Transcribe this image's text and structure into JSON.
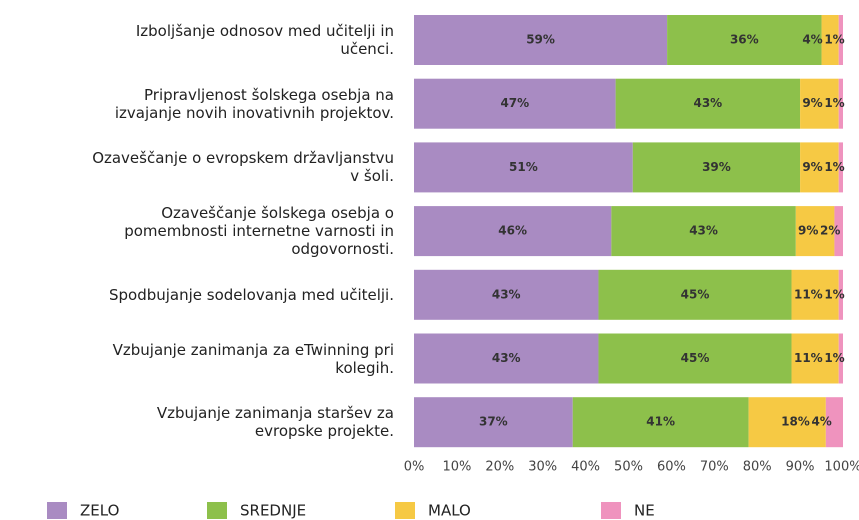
{
  "chart_data": {
    "type": "stacked_barh",
    "categories": [
      "Izboljšanje odnosov med učitelji in\nučenci.",
      "Pripravljenost šolskega osebja na\nizvajanje novih inovativnih projektov.",
      "Ozaveščanje o evropskem državljanstvu\nv šoli.",
      "Ozaveščanje šolskega osebja o\npomembnosti internetne varnosti in\nodgovornosti.",
      "Spodbujanje sodelovanja med učitelji.",
      "Vzbujanje zanimanja za eTwinning pri\nkolegih.",
      "Vzbujanje zanimanja staršev za\nevropske projekte."
    ],
    "series": [
      {
        "name": "ZELO",
        "color": "#a98bc2",
        "values": [
          59,
          47,
          51,
          46,
          43,
          43,
          37
        ],
        "value_labels": [
          "59%",
          "47%",
          "51%",
          "46%",
          "43%",
          "43%",
          "37%"
        ]
      },
      {
        "name": "SREDNJE",
        "color": "#8dc04b",
        "values": [
          36,
          43,
          39,
          43,
          45,
          45,
          41
        ],
        "value_labels": [
          "36%",
          "43%",
          "39%",
          "43%",
          "45%",
          "45%",
          "41%"
        ]
      },
      {
        "name": "MALO",
        "color": "#f6c944",
        "values": [
          4,
          9,
          9,
          9,
          11,
          11,
          18
        ],
        "value_labels": [
          "4%",
          "9%",
          "9%",
          "9%",
          "11%",
          "11%",
          "18%"
        ]
      },
      {
        "name": "NE",
        "color": "#ef93be",
        "values": [
          1,
          1,
          1,
          2,
          1,
          1,
          4
        ],
        "value_labels": [
          "1%",
          "1%",
          "1%",
          "2%",
          "1%",
          "1%",
          "4%"
        ]
      }
    ],
    "xlim": [
      0,
      100
    ],
    "xticks": [
      {
        "value": 0,
        "label": "0%"
      },
      {
        "value": 10,
        "label": "10%"
      },
      {
        "value": 20,
        "label": "20%"
      },
      {
        "value": 30,
        "label": "30%"
      },
      {
        "value": 40,
        "label": "40%"
      },
      {
        "value": 50,
        "label": "50%"
      },
      {
        "value": 60,
        "label": "60%"
      },
      {
        "value": 70,
        "label": "70%"
      },
      {
        "value": 80,
        "label": "80%"
      },
      {
        "value": 90,
        "label": "90%"
      },
      {
        "value": 100,
        "label": "100%"
      }
    ],
    "legend": "bottom"
  }
}
